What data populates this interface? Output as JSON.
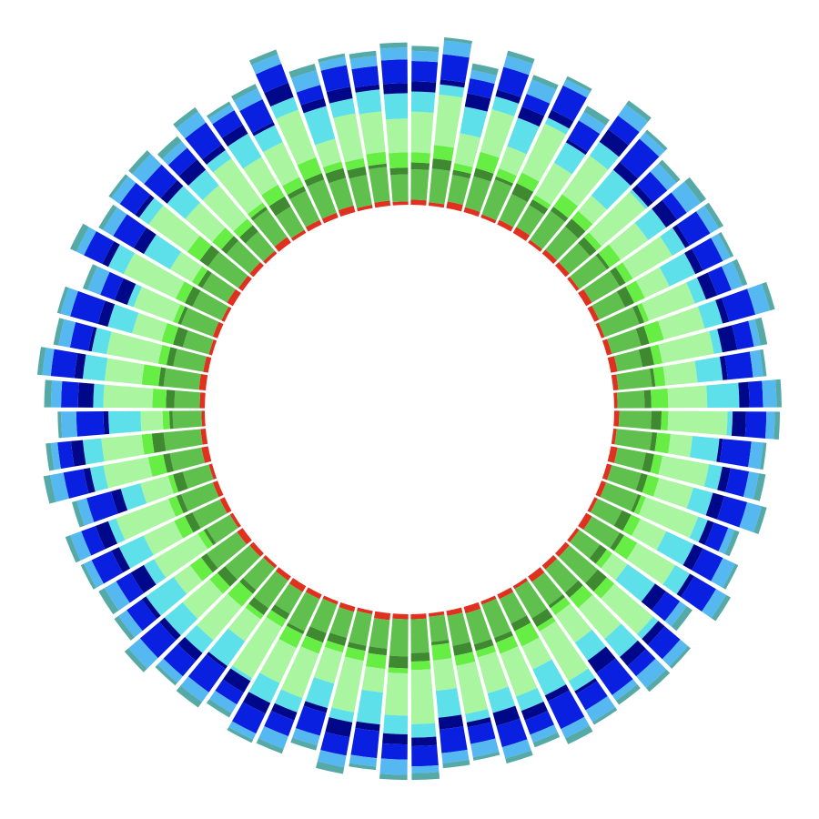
{
  "chart_data": {
    "type": "radial-stacked-bar",
    "ylim": [
      0,
      120
    ],
    "series": [
      {
        "color": "#e03020",
        "values": [
          3,
          2,
          4,
          3,
          2,
          3,
          4,
          2,
          3,
          3,
          2,
          4,
          3,
          2,
          3,
          4,
          3,
          2,
          3,
          2,
          4,
          3,
          3,
          2,
          4,
          2,
          3,
          3,
          4,
          2,
          3,
          2,
          4,
          3,
          2,
          3,
          3,
          4,
          2,
          3,
          2,
          3,
          4,
          3,
          2,
          3,
          4,
          2,
          3,
          3,
          2,
          4,
          3,
          2,
          3,
          4,
          3,
          2,
          3,
          2,
          4,
          3,
          3,
          2,
          4,
          2,
          3,
          3,
          4,
          2,
          3,
          2
        ]
      },
      {
        "color": "#5fc04e",
        "values": [
          18,
          20,
          16,
          19,
          22,
          17,
          15,
          21,
          18,
          16,
          20,
          19,
          17,
          22,
          18,
          15,
          20,
          16,
          19,
          21,
          17,
          18,
          20,
          16,
          19,
          15,
          22,
          18,
          17,
          20,
          16,
          21,
          19,
          18,
          15,
          20,
          22,
          17,
          19,
          16,
          18,
          21,
          15,
          20,
          17,
          19,
          22,
          16,
          18,
          20,
          16,
          19,
          22,
          17,
          15,
          21,
          18,
          16,
          20,
          19,
          17,
          22,
          18,
          15,
          20,
          16,
          19,
          21,
          17,
          18,
          20,
          16
        ]
      },
      {
        "color": "#3f8a30",
        "values": [
          4,
          6,
          3,
          5,
          2,
          7,
          4,
          3,
          6,
          5,
          2,
          4,
          6,
          3,
          5,
          7,
          2,
          4,
          6,
          3,
          5,
          4,
          2,
          6,
          3,
          5,
          7,
          4,
          2,
          6,
          5,
          3,
          4,
          6,
          2,
          5,
          7,
          4,
          3,
          5,
          6,
          2,
          4,
          5,
          3,
          6,
          4,
          2,
          5,
          3,
          6,
          4,
          7,
          2,
          5,
          3,
          4,
          6,
          2,
          5,
          3,
          6,
          4,
          5,
          2,
          7,
          3,
          4,
          6,
          5,
          2,
          4
        ]
      },
      {
        "color": "#66ee44",
        "values": [
          6,
          8,
          4,
          10,
          5,
          7,
          3,
          9,
          6,
          4,
          8,
          5,
          7,
          3,
          9,
          5,
          6,
          10,
          4,
          8,
          5,
          7,
          3,
          6,
          9,
          4,
          6,
          8,
          5,
          3,
          10,
          7,
          4,
          6,
          9,
          5,
          3,
          8,
          6,
          4,
          7,
          9,
          5,
          3,
          10,
          6,
          8,
          4,
          7,
          5,
          3,
          9,
          6,
          4,
          8,
          10,
          5,
          7,
          3,
          6,
          4,
          9,
          7,
          5,
          3,
          8,
          6,
          10,
          4,
          5,
          7,
          9
        ]
      },
      {
        "color": "#aaf5a0",
        "values": [
          24,
          30,
          18,
          26,
          14,
          32,
          22,
          28,
          12,
          34,
          20,
          27,
          16,
          29,
          25,
          31,
          19,
          23,
          35,
          13,
          28,
          21,
          33,
          17,
          26,
          11,
          30,
          24,
          20,
          34,
          15,
          27,
          22,
          29,
          18,
          32,
          25,
          14,
          31,
          19,
          28,
          23,
          35,
          16,
          26,
          21,
          12,
          30,
          20,
          33,
          17,
          27,
          24,
          13,
          29,
          22,
          31,
          18,
          25,
          34,
          15,
          28,
          21,
          26,
          32,
          19,
          23,
          30,
          14,
          27,
          24,
          20
        ]
      },
      {
        "color": "#5ee0ea",
        "values": [
          12,
          6,
          16,
          8,
          18,
          4,
          14,
          10,
          20,
          2,
          13,
          9,
          17,
          7,
          11,
          5,
          15,
          19,
          3,
          16,
          8,
          12,
          6,
          18,
          10,
          20,
          4,
          14,
          13,
          7,
          17,
          9,
          12,
          5,
          16,
          8,
          11,
          19,
          6,
          15,
          9,
          13,
          2,
          18,
          10,
          14,
          20,
          7,
          16,
          5,
          12,
          8,
          11,
          19,
          6,
          13,
          9,
          15,
          4,
          10,
          18,
          7,
          14,
          12,
          6,
          16,
          11,
          8,
          20,
          9,
          13,
          15
        ]
      },
      {
        "color": "#00088a",
        "values": [
          6,
          3,
          8,
          4,
          7,
          5,
          2,
          9,
          6,
          4,
          8,
          3,
          5,
          7,
          4,
          9,
          3,
          6,
          8,
          2,
          5,
          7,
          4,
          6,
          3,
          8,
          5,
          7,
          9,
          2,
          4,
          6,
          8,
          3,
          7,
          5,
          6,
          4,
          9,
          3,
          5,
          7,
          8,
          2,
          6,
          4,
          3,
          9,
          5,
          8,
          6,
          4,
          7,
          3,
          9,
          5,
          2,
          6,
          8,
          4,
          7,
          3,
          5,
          8,
          4,
          6,
          2,
          9,
          5,
          7,
          3,
          6
        ]
      },
      {
        "color": "#0a20e0",
        "values": [
          12,
          15,
          9,
          14,
          8,
          16,
          13,
          10,
          18,
          11,
          7,
          14,
          13,
          9,
          16,
          10,
          15,
          8,
          12,
          17,
          11,
          14,
          9,
          13,
          15,
          10,
          12,
          8,
          16,
          11,
          18,
          9,
          13,
          10,
          14,
          12,
          9,
          16,
          11,
          14,
          10,
          13,
          8,
          17,
          12,
          15,
          11,
          10,
          13,
          9,
          15,
          12,
          8,
          16,
          10,
          14,
          11,
          17,
          9,
          12,
          14,
          11,
          13,
          9,
          16,
          10,
          15,
          12,
          8,
          13,
          11,
          14
        ]
      },
      {
        "color": "#55b8f0",
        "values": [
          6,
          8,
          5,
          7,
          9,
          4,
          6,
          8,
          5,
          7,
          10,
          6,
          5,
          7,
          9,
          4,
          6,
          8,
          5,
          7,
          6,
          9,
          4,
          8,
          7,
          5,
          6,
          9,
          4,
          8,
          6,
          5,
          7,
          8,
          6,
          4,
          9,
          5,
          7,
          6,
          8,
          4,
          6,
          7,
          5,
          9,
          6,
          8,
          5,
          7,
          6,
          8,
          4,
          9,
          6,
          5,
          7,
          6,
          8,
          5,
          7,
          6,
          9,
          5,
          8,
          4,
          7,
          6,
          9,
          5,
          6,
          7
        ]
      },
      {
        "color": "#55aaa8",
        "values": [
          3,
          2,
          4,
          3,
          3,
          2,
          4,
          3,
          2,
          3,
          4,
          3,
          2,
          3,
          3,
          4,
          2,
          3,
          3,
          2,
          4,
          3,
          3,
          2,
          3,
          4,
          2,
          3,
          3,
          2,
          4,
          3,
          3,
          2,
          3,
          4,
          3,
          2,
          4,
          3,
          3,
          2,
          3,
          4,
          2,
          3,
          3,
          4,
          2,
          3,
          3,
          4,
          3,
          2,
          4,
          3,
          3,
          2,
          3,
          4,
          3,
          2,
          3,
          4,
          3,
          2,
          3,
          3,
          4,
          2,
          3,
          3
        ]
      }
    ]
  }
}
